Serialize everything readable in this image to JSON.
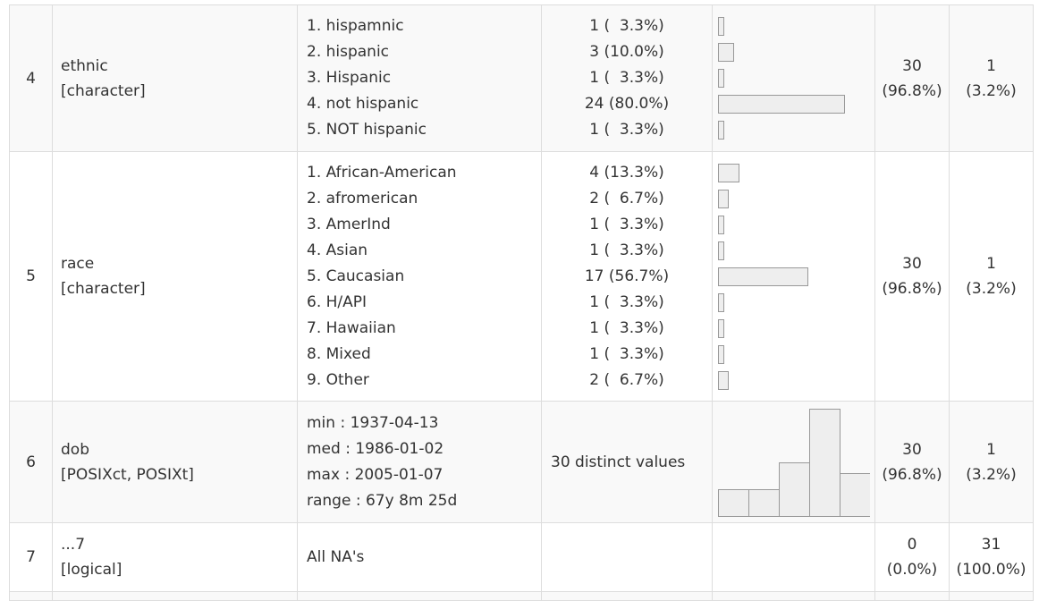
{
  "rows": [
    {
      "no": "4",
      "var_name": "ethnic",
      "var_type": "[character]",
      "stats": [
        "1. hispamnic",
        "2. hispanic",
        "3. Hispanic",
        "4. not hispanic",
        "5. NOT hispanic"
      ],
      "freqs": [
        " 1 (  3.3%)",
        " 3 (10.0%)",
        " 1 (  3.3%)",
        "24 (80.0%)",
        " 1 (  3.3%)"
      ],
      "bar_fractions": [
        0.033,
        0.1,
        0.033,
        0.8,
        0.033
      ],
      "valid_count": "30",
      "valid_pct": "(96.8%)",
      "missing_count": "1",
      "missing_pct": "(3.2%)"
    },
    {
      "no": "5",
      "var_name": "race",
      "var_type": "[character]",
      "stats": [
        "1. African-American",
        "2. afromerican",
        "3. AmerInd",
        "4. Asian",
        "5. Caucasian",
        "6. H/API",
        "7. Hawaiian",
        "8. Mixed",
        "9. Other"
      ],
      "freqs": [
        " 4 (13.3%)",
        " 2 (  6.7%)",
        " 1 (  3.3%)",
        " 1 (  3.3%)",
        "17 (56.7%)",
        " 1 (  3.3%)",
        " 1 (  3.3%)",
        " 1 (  3.3%)",
        " 2 (  6.7%)"
      ],
      "bar_fractions": [
        0.133,
        0.067,
        0.033,
        0.033,
        0.567,
        0.033,
        0.033,
        0.033,
        0.067
      ],
      "valid_count": "30",
      "valid_pct": "(96.8%)",
      "missing_count": "1",
      "missing_pct": "(3.2%)"
    },
    {
      "no": "6",
      "var_name": "dob",
      "var_type": "[POSIXct, POSIXt]",
      "stats": [
        "min : 1937-04-13",
        "med : 1986-01-02",
        "max : 2005-01-07",
        "range : 67y 8m 25d"
      ],
      "freqs_text": "30 distinct values",
      "histogram_counts": [
        1,
        1,
        2,
        4,
        1.6
      ],
      "valid_count": "30",
      "valid_pct": "(96.8%)",
      "missing_count": "1",
      "missing_pct": "(3.2%)"
    },
    {
      "no": "7",
      "var_name": "...7",
      "var_type": "[logical]",
      "stats_text": "All NA's",
      "valid_count": "0",
      "valid_pct": "(0.0%)",
      "missing_count": "31",
      "missing_pct": "(100.0%)"
    }
  ],
  "colors": {
    "border": "#dddddd",
    "row_odd": "#f9f9f9",
    "bar_fill": "#eeeeee",
    "bar_stroke": "#999999"
  }
}
